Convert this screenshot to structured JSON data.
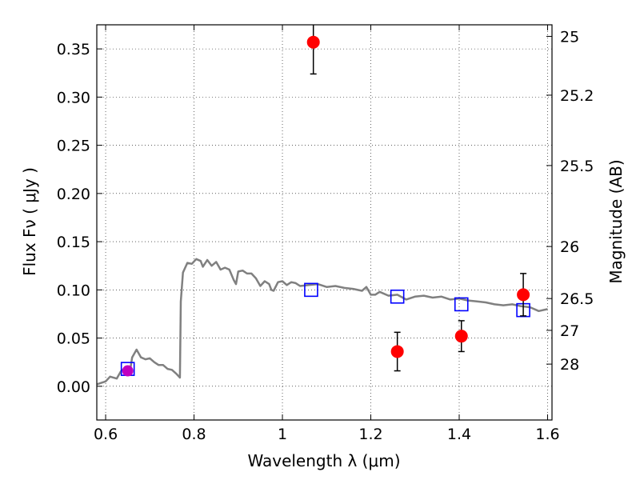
{
  "chart_data": {
    "type": "scatter",
    "xlabel": "Wavelength  λ (μm)",
    "ylabel": "Flux  Fν  ( μJy )",
    "ylabel_right": "Magnitude (AB)",
    "xlim": [
      0.58,
      1.61
    ],
    "ylim": [
      -0.035,
      0.375
    ],
    "grid": true,
    "x_ticks": [
      0.6,
      0.8,
      1.0,
      1.2,
      1.4,
      1.6
    ],
    "x_tick_labels": [
      "0.6",
      "0.8",
      "1",
      "1.2",
      "1.4",
      "1.6"
    ],
    "y_ticks": [
      0.0,
      0.05,
      0.1,
      0.15,
      0.2,
      0.25,
      0.3,
      0.35
    ],
    "y_tick_labels": [
      "0.00",
      "0.05",
      "0.10",
      "0.15",
      "0.20",
      "0.25",
      "0.30",
      "0.35"
    ],
    "right_ticks": [
      {
        "label": "25",
        "flux": 0.363
      },
      {
        "label": "25.2",
        "flux": 0.302
      },
      {
        "label": "25.5",
        "flux": 0.229
      },
      {
        "label": "26",
        "flux": 0.145
      },
      {
        "label": "26.5",
        "flux": 0.091
      },
      {
        "label": "27",
        "flux": 0.058
      },
      {
        "label": "28",
        "flux": 0.023
      }
    ],
    "series": [
      {
        "kind": "line",
        "color": "#808080",
        "x": [
          0.58,
          0.6,
          0.61,
          0.625,
          0.635,
          0.645,
          0.655,
          0.66,
          0.67,
          0.68,
          0.69,
          0.7,
          0.71,
          0.72,
          0.73,
          0.74,
          0.75,
          0.76,
          0.768,
          0.77,
          0.775,
          0.785,
          0.795,
          0.805,
          0.815,
          0.82,
          0.83,
          0.84,
          0.85,
          0.86,
          0.87,
          0.88,
          0.89,
          0.895,
          0.9,
          0.91,
          0.92,
          0.93,
          0.94,
          0.95,
          0.96,
          0.97,
          0.975,
          0.98,
          0.99,
          1.0,
          1.01,
          1.02,
          1.03,
          1.04,
          1.06,
          1.08,
          1.1,
          1.12,
          1.14,
          1.16,
          1.18,
          1.19,
          1.2,
          1.21,
          1.22,
          1.24,
          1.26,
          1.28,
          1.3,
          1.32,
          1.34,
          1.36,
          1.38,
          1.4,
          1.42,
          1.44,
          1.46,
          1.48,
          1.5,
          1.52,
          1.54,
          1.56,
          1.58,
          1.6
        ],
        "y": [
          0.002,
          0.005,
          0.01,
          0.008,
          0.016,
          0.019,
          0.015,
          0.03,
          0.038,
          0.03,
          0.028,
          0.029,
          0.025,
          0.022,
          0.022,
          0.018,
          0.017,
          0.013,
          0.009,
          0.088,
          0.118,
          0.128,
          0.127,
          0.132,
          0.13,
          0.124,
          0.131,
          0.125,
          0.129,
          0.121,
          0.123,
          0.121,
          0.11,
          0.106,
          0.119,
          0.12,
          0.117,
          0.117,
          0.112,
          0.104,
          0.109,
          0.106,
          0.1,
          0.099,
          0.108,
          0.109,
          0.105,
          0.108,
          0.107,
          0.104,
          0.105,
          0.106,
          0.103,
          0.104,
          0.102,
          0.101,
          0.099,
          0.103,
          0.095,
          0.095,
          0.098,
          0.094,
          0.095,
          0.09,
          0.093,
          0.094,
          0.092,
          0.093,
          0.09,
          0.091,
          0.089,
          0.088,
          0.087,
          0.085,
          0.084,
          0.085,
          0.083,
          0.082,
          0.078,
          0.08
        ]
      },
      {
        "kind": "points",
        "marker": "open-square",
        "color": "#0000ff",
        "x": [
          0.65,
          1.065,
          1.26,
          1.405,
          1.545
        ],
        "y": [
          0.018,
          0.1,
          0.093,
          0.085,
          0.079
        ]
      },
      {
        "kind": "points",
        "marker": "filled-circle",
        "color": "#ff0000",
        "x": [
          0.65,
          1.07,
          1.26,
          1.405,
          1.545
        ],
        "y": [
          0.016,
          0.357,
          0.036,
          0.052,
          0.095
        ],
        "yerr": [
          0.0,
          0.033,
          0.02,
          0.016,
          0.022
        ]
      }
    ]
  }
}
